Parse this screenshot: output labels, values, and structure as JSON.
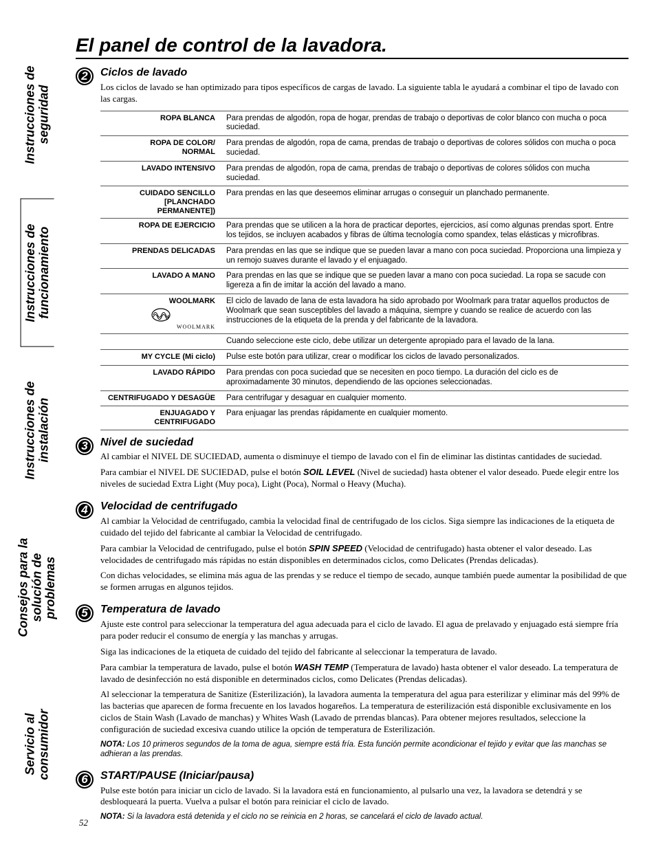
{
  "page_number": "52",
  "title": "El panel de control de la lavadora.",
  "side_tabs": [
    {
      "label": "Instrucciones de\nseguridad",
      "bordered": false
    },
    {
      "label": "Instrucciones de\nfuncionamiento",
      "bordered": true
    },
    {
      "label": "Instrucciones de\ninstalación",
      "bordered": false
    },
    {
      "label": "Consejos para la\nsolución de problemas",
      "bordered": false
    },
    {
      "label": "Servicio al consumidor",
      "bordered": false
    }
  ],
  "sections": {
    "s2": {
      "num": "2",
      "heading": "Ciclos de lavado",
      "intro": "Los ciclos de lavado se han optimizado para tipos específicos de cargas de lavado. La siguiente tabla le ayudará a combinar el tipo de lavado con las cargas.",
      "rows": [
        {
          "label": "ROPA BLANCA",
          "desc": "Para prendas de algodón, ropa de hogar, prendas de trabajo o deportivas de color blanco con mucha o poca suciedad."
        },
        {
          "label": "ROPA DE COLOR/\nNORMAL",
          "desc": "Para prendas de algodón, ropa de cama, prendas de trabajo o deportivas de colores sólidos con mucha o poca suciedad."
        },
        {
          "label": "LAVADO INTENSIVO",
          "desc": "Para prendas de algodón, ropa de cama, prendas de trabajo o deportivas de colores sólidos con mucha suciedad."
        },
        {
          "label": "CUIDADO SENCILLO\n[PLANCHADO PERMANENTE])",
          "desc": "Para prendas en las que deseemos eliminar arrugas o conseguir un planchado permanente."
        },
        {
          "label": "ROPA DE EJERCICIO",
          "desc": "Para prendas que se utilicen a la hora de practicar deportes, ejercicios, así como algunas prendas sport. Entre los tejidos, se incluyen acabados y fibras de última tecnología como spandex, telas elásticas y microfibras."
        },
        {
          "label": "PRENDAS DELICADAS",
          "desc": "Para prendas en las que se indique que se pueden lavar a mano con poca suciedad. Proporciona una limpieza y un remojo suaves durante el lavado y el enjuagado."
        },
        {
          "label": "LAVADO A MANO",
          "desc": "Para prendas en las que se indique que se pueden lavar a mano con poca suciedad. La ropa se sacude con ligereza a fin de imitar la acción del lavado a mano."
        },
        {
          "label": "WOOLMARK",
          "desc": "El ciclo de lavado de lana de esta lavadora ha sido aprobado por Woolmark para tratar aquellos productos de Woolmark que sean susceptibles del lavado a máquina, siempre y cuando se realice de acuerdo con las instrucciones de la etiqueta de la prenda y del fabricante de la lavadora.",
          "woolmark": true,
          "woolmark_caption": "WOOLMARK"
        },
        {
          "label": "",
          "desc": "Cuando seleccione este ciclo, debe utilizar un detergente apropiado para el lavado de la lana."
        },
        {
          "label": "MY CYCLE (Mi ciclo)",
          "desc": "Pulse este botón para utilizar, crear o modificar los ciclos de lavado personalizados."
        },
        {
          "label": "LAVADO RÁPIDO",
          "desc": "Para prendas con poca suciedad que se necesiten en poco tiempo. La duración del ciclo es de aproximadamente 30 minutos, dependiendo de las opciones seleccionadas."
        },
        {
          "label": "CENTRIFUGADO Y DESAGÜE",
          "desc": "Para centrifugar y desaguar en cualquier momento."
        },
        {
          "label": "ENJUAGADO Y CENTRIFUGADO",
          "desc": "Para enjuagar las prendas rápidamente en cualquier momento."
        }
      ]
    },
    "s3": {
      "num": "3",
      "heading": "Nivel de suciedad",
      "p1": "Al cambiar el NIVEL DE SUCIEDAD, aumenta o disminuye el tiempo de lavado con el fin de eliminar las distintas cantidades de suciedad.",
      "p2a": "Para cambiar el NIVEL DE SUCIEDAD, pulse el botón ",
      "p2b": "SOIL LEVEL",
      "p2c": " (Nivel de suciedad) hasta obtener el valor deseado. Puede elegir entre los niveles de suciedad Extra Light (Muy poca), Light (Poca), Normal o Heavy (Mucha)."
    },
    "s4": {
      "num": "4",
      "heading": "Velocidad de centrifugado",
      "p1": "Al cambiar la Velocidad de centrifugado, cambia la velocidad final de centrifugado de los ciclos. Siga siempre las indicaciones de la etiqueta de cuidado del tejido del fabricante al cambiar la Velocidad de centrifugado.",
      "p2a": "Para cambiar la Velocidad de centrifugado, pulse el botón ",
      "p2b": "SPIN SPEED",
      "p2c": " (Velocidad de centrifugado) hasta obtener el valor deseado. Las velocidades de centrifugado más rápidas no están disponibles en determinados ciclos, como Delicates (Prendas delicadas).",
      "p3": "Con dichas velocidades, se elimina más agua de las prendas y se reduce el tiempo de secado, aunque también puede aumentar la posibilidad de que se formen arrugas en algunos tejidos."
    },
    "s5": {
      "num": "5",
      "heading": "Temperatura de lavado",
      "p1": "Ajuste este control para seleccionar la temperatura del agua adecuada para el ciclo de lavado. El agua de prelavado y enjuagado está siempre fría para poder reducir el consumo de energía y las manchas y arrugas.",
      "p2": "Siga las indicaciones de la etiqueta de cuidado del tejido del fabricante al seleccionar la temperatura de lavado.",
      "p3a": "Para cambiar la temperatura de lavado, pulse el botón ",
      "p3b": "WASH TEMP",
      "p3c": " (Temperatura de lavado) hasta obtener el valor deseado. La temperatura de lavado de desinfección no está disponible en determinados ciclos, como Delicates (Prendas delicadas).",
      "p4": "Al seleccionar la temperatura de Sanitize (Esterilización), la lavadora aumenta la temperatura del agua para esterilizar y eliminar más del 99% de las bacterias que aparecen de forma frecuente en los lavados hogareños. La temperatura de esterilización está disponible exclusivamente en los ciclos de Stain Wash (Lavado de manchas) y Whites Wash (Lavado de prrendas blancas). Para obtener mejores resultados, seleccione la configuración de suciedad excesiva cuando utilice la opción de temperatura de Esterilización.",
      "note_label": "NOTA:",
      "note": " Los 10 primeros segundos de la toma de agua, siempre está fría. Esta función permite acondicionar el tejido y evitar que las manchas se adhieran a las prendas."
    },
    "s6": {
      "num": "6",
      "heading": "START/PAUSE (Iniciar/pausa)",
      "p1": "Pulse este botón para iniciar un ciclo de lavado. Si la lavadora está en funcionamiento, al pulsarlo una vez, la lavadora se detendrá y se desbloqueará la puerta. Vuelva a pulsar el botón para reiniciar el ciclo de lavado.",
      "note_label": "NOTA:",
      "note": " Si la lavadora está detenida y el ciclo no se reinicia en 2 horas, se cancelará el ciclo de lavado actual."
    }
  }
}
